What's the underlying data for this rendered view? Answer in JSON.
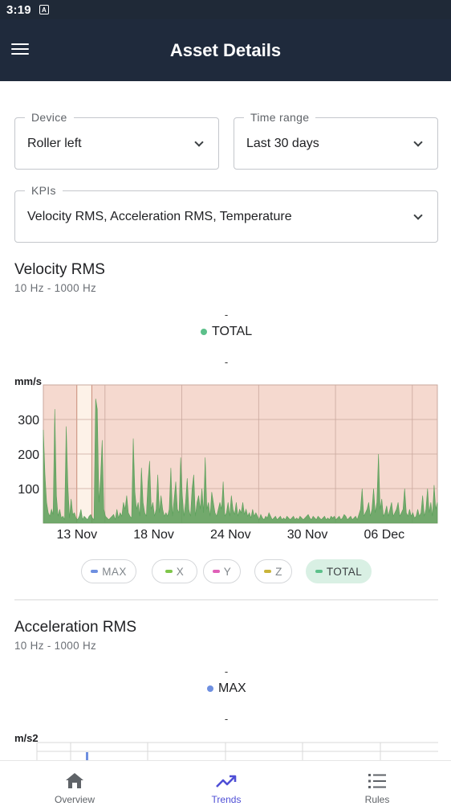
{
  "status_bar": {
    "time": "3:19",
    "notif_glyph": "A"
  },
  "app_bar": {
    "title": "Asset Details",
    "menu_icon": "hamburger-menu-icon"
  },
  "filters": {
    "device": {
      "label": "Device",
      "value": "Roller left"
    },
    "time_range": {
      "label": "Time range",
      "value": "Last 30 days"
    },
    "kpis": {
      "label": "KPIs",
      "value": "Velocity RMS, Acceleration RMS, Temperature"
    }
  },
  "velocity": {
    "title": "Velocity RMS",
    "subtitle": "10 Hz - 1000 Hz",
    "dash_top": "-",
    "legend_label": "TOTAL",
    "dash_bottom": "-",
    "unit": "mm/s",
    "colors": {
      "series": "#5aa05a",
      "alarm_bg": "#f5d9cf",
      "highlight": "#fdf2e8",
      "marker": "#c88c78"
    },
    "chart_data": {
      "type": "area",
      "ylabel": "mm/s",
      "ylim": [
        0,
        400
      ],
      "y_ticks": [
        100,
        200,
        300
      ],
      "x_ticks": [
        "13 Nov",
        "18 Nov",
        "24 Nov",
        "30 Nov",
        "06 Dec"
      ],
      "series": [
        {
          "name": "TOTAL",
          "values": [
            270,
            140,
            60,
            30,
            20,
            40,
            25,
            330,
            80,
            20,
            40,
            15,
            20,
            10,
            280,
            110,
            15,
            70,
            25,
            30,
            15,
            10,
            20,
            40,
            10,
            20,
            15,
            10,
            20,
            25,
            15,
            10,
            360,
            330,
            60,
            130,
            240,
            40,
            20,
            15,
            10,
            15,
            20,
            25,
            10,
            40,
            15,
            30,
            20,
            60,
            40,
            80,
            30,
            20,
            15,
            245,
            90,
            40,
            60,
            20,
            160,
            60,
            30,
            20,
            120,
            180,
            40,
            60,
            20,
            40,
            140,
            30,
            80,
            40,
            20,
            30,
            20,
            40,
            160,
            20,
            70,
            120,
            40,
            30,
            190,
            80,
            20,
            60,
            130,
            40,
            20,
            100,
            140,
            20,
            60,
            80,
            40,
            100,
            30,
            190,
            40,
            60,
            20,
            90,
            60,
            30,
            20,
            40,
            60,
            40,
            120,
            20,
            30,
            60,
            20,
            80,
            40,
            25,
            60,
            20,
            40,
            30,
            60,
            25,
            40,
            20,
            30,
            15,
            40,
            20,
            30,
            20,
            10,
            25,
            15,
            10,
            20,
            15,
            30,
            20,
            10,
            15,
            20,
            10,
            15,
            20,
            10,
            15,
            10,
            20,
            15,
            10,
            15,
            20,
            10,
            15,
            10,
            20,
            15,
            10,
            15,
            20,
            25,
            15,
            10,
            20,
            15,
            10,
            20,
            15,
            10,
            15,
            20,
            10,
            15,
            10,
            20,
            15,
            20,
            10,
            15,
            20,
            10,
            15,
            25,
            20,
            10,
            15,
            20,
            10,
            15,
            20,
            10,
            25,
            40,
            100,
            20,
            30,
            40,
            60,
            20,
            40,
            100,
            30,
            60,
            200,
            40,
            70,
            20,
            30,
            50,
            20,
            40,
            60,
            20,
            30,
            40,
            60,
            20,
            30,
            40,
            100,
            30,
            20,
            40,
            20,
            30,
            15,
            20,
            40,
            20,
            30,
            80,
            20,
            40,
            100,
            30,
            60,
            20,
            110,
            40,
            60
          ]
        }
      ]
    },
    "chips": [
      {
        "label": "MAX",
        "color": "#6e8fe0",
        "active": false
      },
      {
        "label": "X",
        "color": "#7fc64a",
        "active": false
      },
      {
        "label": "Y",
        "color": "#e060b8",
        "active": false
      },
      {
        "label": "Z",
        "color": "#c9b43a",
        "active": false
      },
      {
        "label": "TOTAL",
        "color": "#5cc08a",
        "active": true
      }
    ]
  },
  "acceleration": {
    "title": "Acceleration RMS",
    "subtitle": "10 Hz - 1000 Hz",
    "dash_top": "-",
    "legend_label": "MAX",
    "legend_color": "#6e8fe0",
    "dash_bottom": "-",
    "unit": "m/s2"
  },
  "bottom_nav": [
    {
      "label": "Overview",
      "icon": "home-icon",
      "active": false
    },
    {
      "label": "Trends",
      "icon": "trending-up-icon",
      "active": true
    },
    {
      "label": "Rules",
      "icon": "list-icon",
      "active": false
    }
  ]
}
